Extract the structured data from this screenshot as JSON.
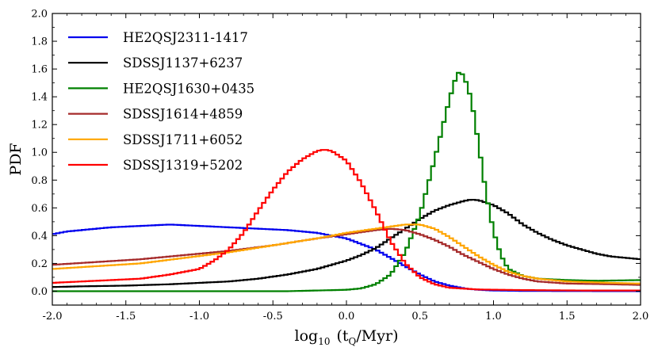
{
  "chart_data": {
    "type": "line",
    "step": true,
    "title": "",
    "xlabel_prefix": "log",
    "xlabel_sub": "10",
    "xlabel_open": "(t",
    "xlabel_sub2": "Q",
    "xlabel_close": "/Myr)",
    "ylabel": "PDF",
    "xlim": [
      -2.0,
      2.0
    ],
    "ylim": [
      -0.1,
      2.0
    ],
    "xticks": [
      -2.0,
      -1.5,
      -1.0,
      -0.5,
      0.0,
      0.5,
      1.0,
      1.5,
      2.0
    ],
    "xtick_labels": [
      "-2.0",
      "-1.5",
      "-1.0",
      "-0.5",
      "0.0",
      "0.5",
      "1.0",
      "1.5",
      "2.0"
    ],
    "yticks": [
      0.0,
      0.2,
      0.4,
      0.6,
      0.8,
      1.0,
      1.2,
      1.4,
      1.6,
      1.8,
      2.0
    ],
    "ytick_labels": [
      "0.0",
      "0.2",
      "0.4",
      "0.6",
      "0.8",
      "1.0",
      "1.2",
      "1.4",
      "1.6",
      "1.8",
      "2.0"
    ],
    "legend_position": "upper-left",
    "grid": false,
    "series": [
      {
        "name": "HE2QSJ2311-1417",
        "color": "#0000ee",
        "points": [
          [
            -2.0,
            0.41
          ],
          [
            -1.9,
            0.43
          ],
          [
            -1.8,
            0.44
          ],
          [
            -1.6,
            0.46
          ],
          [
            -1.4,
            0.47
          ],
          [
            -1.2,
            0.48
          ],
          [
            -1.0,
            0.47
          ],
          [
            -0.8,
            0.46
          ],
          [
            -0.6,
            0.45
          ],
          [
            -0.4,
            0.44
          ],
          [
            -0.2,
            0.42
          ],
          [
            0.0,
            0.38
          ],
          [
            0.1,
            0.34
          ],
          [
            0.2,
            0.3
          ],
          [
            0.3,
            0.24
          ],
          [
            0.4,
            0.18
          ],
          [
            0.5,
            0.12
          ],
          [
            0.6,
            0.07
          ],
          [
            0.7,
            0.04
          ],
          [
            0.8,
            0.02
          ],
          [
            0.9,
            0.01
          ],
          [
            1.0,
            0.005
          ],
          [
            1.2,
            0.002
          ],
          [
            2.0,
            0.0
          ]
        ]
      },
      {
        "name": "SDSSJ1137+6237",
        "color": "#000000",
        "points": [
          [
            -2.0,
            0.03
          ],
          [
            -1.8,
            0.035
          ],
          [
            -1.5,
            0.04
          ],
          [
            -1.2,
            0.05
          ],
          [
            -1.0,
            0.06
          ],
          [
            -0.8,
            0.07
          ],
          [
            -0.6,
            0.09
          ],
          [
            -0.4,
            0.12
          ],
          [
            -0.2,
            0.16
          ],
          [
            0.0,
            0.22
          ],
          [
            0.1,
            0.26
          ],
          [
            0.2,
            0.31
          ],
          [
            0.3,
            0.38
          ],
          [
            0.4,
            0.45
          ],
          [
            0.5,
            0.52
          ],
          [
            0.6,
            0.58
          ],
          [
            0.7,
            0.62
          ],
          [
            0.8,
            0.65
          ],
          [
            0.85,
            0.66
          ],
          [
            0.9,
            0.655
          ],
          [
            1.0,
            0.62
          ],
          [
            1.1,
            0.56
          ],
          [
            1.2,
            0.48
          ],
          [
            1.3,
            0.42
          ],
          [
            1.4,
            0.37
          ],
          [
            1.5,
            0.33
          ],
          [
            1.6,
            0.3
          ],
          [
            1.7,
            0.27
          ],
          [
            1.8,
            0.25
          ],
          [
            1.9,
            0.24
          ],
          [
            2.0,
            0.23
          ]
        ]
      },
      {
        "name": "HE2QSJ1630+0435",
        "color": "#008000",
        "points": [
          [
            -2.0,
            0.0
          ],
          [
            -0.4,
            0.0
          ],
          [
            -0.2,
            0.005
          ],
          [
            0.0,
            0.01
          ],
          [
            0.1,
            0.02
          ],
          [
            0.2,
            0.05
          ],
          [
            0.3,
            0.12
          ],
          [
            0.4,
            0.28
          ],
          [
            0.5,
            0.55
          ],
          [
            0.6,
            0.95
          ],
          [
            0.7,
            1.38
          ],
          [
            0.75,
            1.56
          ],
          [
            0.77,
            1.58
          ],
          [
            0.8,
            1.55
          ],
          [
            0.85,
            1.38
          ],
          [
            0.9,
            1.05
          ],
          [
            0.95,
            0.7
          ],
          [
            1.0,
            0.43
          ],
          [
            1.05,
            0.26
          ],
          [
            1.1,
            0.16
          ],
          [
            1.2,
            0.11
          ],
          [
            1.3,
            0.09
          ],
          [
            1.5,
            0.08
          ],
          [
            1.7,
            0.075
          ],
          [
            2.0,
            0.08
          ]
        ]
      },
      {
        "name": "SDSSJ1614+4859",
        "color": "#a52a2a",
        "points": [
          [
            -2.0,
            0.19
          ],
          [
            -1.7,
            0.21
          ],
          [
            -1.4,
            0.23
          ],
          [
            -1.1,
            0.26
          ],
          [
            -0.8,
            0.29
          ],
          [
            -0.5,
            0.33
          ],
          [
            -0.2,
            0.38
          ],
          [
            0.0,
            0.41
          ],
          [
            0.2,
            0.44
          ],
          [
            0.3,
            0.45
          ],
          [
            0.4,
            0.44
          ],
          [
            0.5,
            0.41
          ],
          [
            0.6,
            0.37
          ],
          [
            0.7,
            0.32
          ],
          [
            0.8,
            0.26
          ],
          [
            0.9,
            0.21
          ],
          [
            1.0,
            0.16
          ],
          [
            1.1,
            0.12
          ],
          [
            1.2,
            0.09
          ],
          [
            1.3,
            0.07
          ],
          [
            1.5,
            0.055
          ],
          [
            1.8,
            0.05
          ],
          [
            2.0,
            0.045
          ]
        ]
      },
      {
        "name": "SDSSJ1711+6052",
        "color": "#ffa500",
        "points": [
          [
            -2.0,
            0.16
          ],
          [
            -1.7,
            0.18
          ],
          [
            -1.4,
            0.2
          ],
          [
            -1.1,
            0.24
          ],
          [
            -0.8,
            0.28
          ],
          [
            -0.5,
            0.33
          ],
          [
            -0.2,
            0.38
          ],
          [
            0.0,
            0.42
          ],
          [
            0.2,
            0.45
          ],
          [
            0.4,
            0.48
          ],
          [
            0.5,
            0.48
          ],
          [
            0.6,
            0.45
          ],
          [
            0.7,
            0.39
          ],
          [
            0.8,
            0.32
          ],
          [
            0.9,
            0.25
          ],
          [
            1.0,
            0.19
          ],
          [
            1.1,
            0.14
          ],
          [
            1.2,
            0.11
          ],
          [
            1.3,
            0.09
          ],
          [
            1.5,
            0.07
          ],
          [
            1.8,
            0.06
          ],
          [
            2.0,
            0.055
          ]
        ]
      },
      {
        "name": "SDSSJ1319+5202",
        "color": "#ff0000",
        "points": [
          [
            -2.0,
            0.06
          ],
          [
            -1.8,
            0.07
          ],
          [
            -1.6,
            0.08
          ],
          [
            -1.4,
            0.09
          ],
          [
            -1.2,
            0.12
          ],
          [
            -1.0,
            0.16
          ],
          [
            -0.9,
            0.22
          ],
          [
            -0.8,
            0.3
          ],
          [
            -0.7,
            0.42
          ],
          [
            -0.6,
            0.58
          ],
          [
            -0.5,
            0.73
          ],
          [
            -0.4,
            0.86
          ],
          [
            -0.3,
            0.95
          ],
          [
            -0.2,
            1.01
          ],
          [
            -0.15,
            1.02
          ],
          [
            -0.1,
            1.01
          ],
          [
            0.0,
            0.94
          ],
          [
            0.1,
            0.78
          ],
          [
            0.2,
            0.58
          ],
          [
            0.3,
            0.36
          ],
          [
            0.4,
            0.2
          ],
          [
            0.5,
            0.1
          ],
          [
            0.6,
            0.05
          ],
          [
            0.7,
            0.025
          ],
          [
            0.9,
            0.012
          ],
          [
            1.2,
            0.008
          ],
          [
            1.6,
            0.005
          ],
          [
            2.0,
            0.005
          ]
        ]
      }
    ]
  }
}
